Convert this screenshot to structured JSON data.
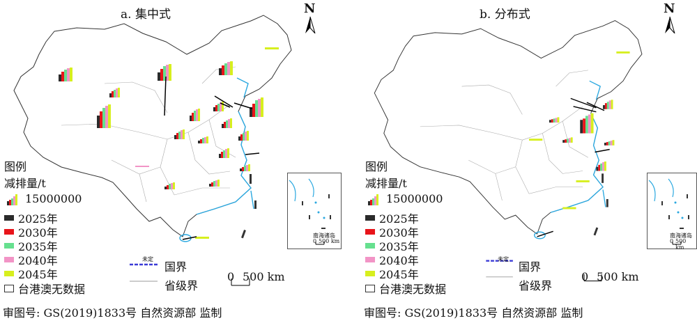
{
  "panels": [
    {
      "id": "a",
      "title": "a. 集中式"
    },
    {
      "id": "b",
      "title": "b. 分布式"
    }
  ],
  "north_label": "N",
  "legend": {
    "title": "图例",
    "subtitle": "减排量/t",
    "bar_scale": "15000000",
    "years": [
      {
        "label": "2025年",
        "color": "#2b2b2b"
      },
      {
        "label": "2030年",
        "color": "#e8141a"
      },
      {
        "label": "2035年",
        "color": "#66e08f"
      },
      {
        "label": "2040年",
        "color": "#f294c6"
      },
      {
        "label": "2045年",
        "color": "#d7ef1e"
      }
    ],
    "no_data": "台港澳无数据",
    "national_border": "国界",
    "undetermined": "未定",
    "provincial_border": "省级界"
  },
  "scale_bar": {
    "zero": "0",
    "label": "500 km"
  },
  "inset": {
    "label": "南海诸岛",
    "scale_zero": "0",
    "scale_label": "500 km"
  },
  "footer": "审图号: GS(2019)1833号  自然资源部 监制",
  "colors": {
    "coast": "#2aa8e0",
    "border": "#333333",
    "province": "#999999"
  }
}
